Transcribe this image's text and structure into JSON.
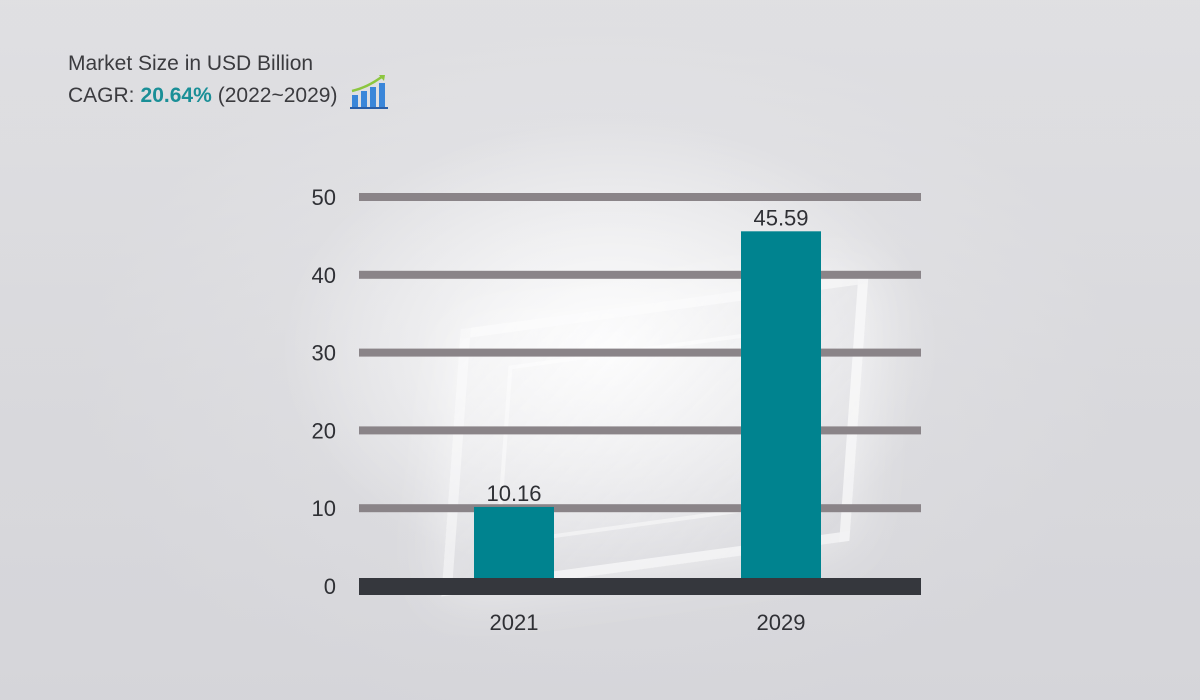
{
  "header": {
    "title": "Market Size in USD Billion",
    "cagr_label": "CAGR:",
    "cagr_value": "20.64%",
    "cagr_period": "(2022~2029)",
    "icon": "growth-chart-icon"
  },
  "colors": {
    "bar": "#00838f",
    "gridline": "#8a8488",
    "baseline": "#35373d",
    "text": "#2f3035",
    "cagr_accent": "#1a8f97"
  },
  "chart_data": {
    "type": "bar",
    "categories": [
      "2021",
      "2029"
    ],
    "values": [
      10.16,
      45.59
    ],
    "data_labels": [
      "10.16",
      "45.59"
    ],
    "ylim": [
      0,
      50
    ],
    "yticks": [
      0,
      10,
      20,
      30,
      40,
      50
    ],
    "grid": true,
    "xlabel": "",
    "ylabel": ""
  }
}
